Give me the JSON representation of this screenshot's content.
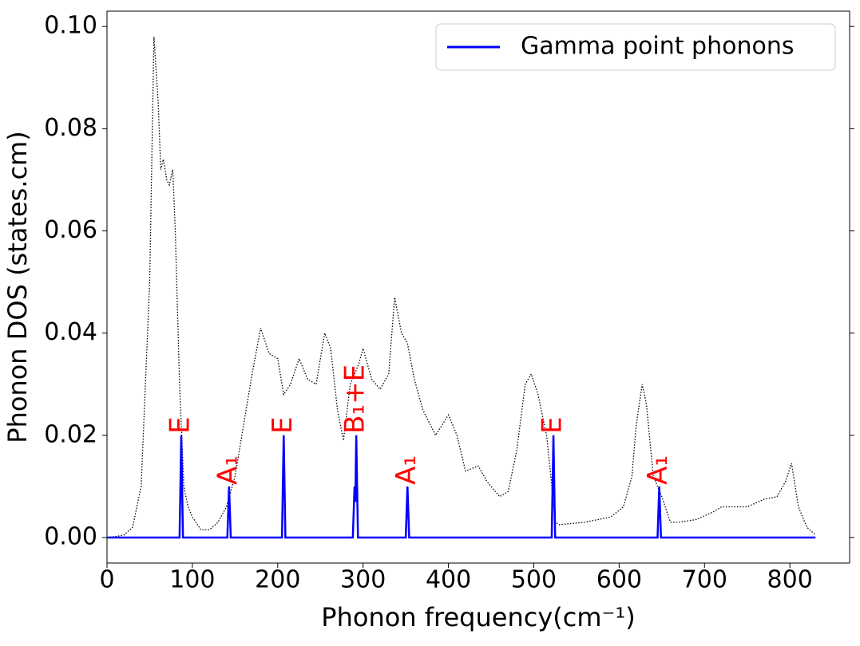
{
  "chart_data": {
    "type": "line",
    "xlabel": "Phonon frequency(cm⁻¹)",
    "ylabel": "Phonon DOS (states.cm)",
    "xlim": [
      0,
      870
    ],
    "ylim": [
      -0.005,
      0.103
    ],
    "xticks": [
      0,
      100,
      200,
      300,
      400,
      500,
      600,
      700,
      800
    ],
    "yticks": [
      {
        "value": 0,
        "label": "0.00"
      },
      {
        "value": 0.02,
        "label": "0.02"
      },
      {
        "value": 0.04,
        "label": "0.04"
      },
      {
        "value": 0.06,
        "label": "0.06"
      },
      {
        "value": 0.08,
        "label": "0.08"
      },
      {
        "value": 0.1,
        "label": "0.10"
      }
    ],
    "legend": "upper right",
    "series": [
      {
        "color": "#000000",
        "style": "dotted",
        "x": [
          0,
          10,
          20,
          30,
          40,
          50,
          55,
          60,
          63,
          66,
          70,
          73,
          77,
          80,
          85,
          90,
          95,
          100,
          110,
          120,
          130,
          140,
          150,
          160,
          170,
          180,
          190,
          200,
          207,
          215,
          225,
          235,
          245,
          255,
          262,
          270,
          277,
          285,
          295,
          300,
          310,
          320,
          330,
          337,
          345,
          352,
          360,
          370,
          385,
          400,
          410,
          420,
          435,
          445,
          460,
          470,
          480,
          490,
          497,
          505,
          515,
          520,
          525,
          530,
          560,
          590,
          605,
          615,
          620,
          627,
          632,
          640,
          650,
          660,
          670,
          690,
          710,
          720,
          750,
          770,
          785,
          795,
          802,
          810,
          820,
          830
        ],
        "values": [
          0,
          0.0002,
          0.0005,
          0.002,
          0.01,
          0.05,
          0.098,
          0.085,
          0.072,
          0.074,
          0.07,
          0.069,
          0.072,
          0.06,
          0.03,
          0.01,
          0.006,
          0.004,
          0.0015,
          0.0015,
          0.003,
          0.006,
          0.012,
          0.022,
          0.032,
          0.041,
          0.036,
          0.035,
          0.028,
          0.03,
          0.035,
          0.031,
          0.03,
          0.04,
          0.037,
          0.025,
          0.019,
          0.03,
          0.034,
          0.037,
          0.031,
          0.029,
          0.032,
          0.047,
          0.04,
          0.038,
          0.031,
          0.025,
          0.02,
          0.024,
          0.02,
          0.013,
          0.014,
          0.011,
          0.008,
          0.009,
          0.017,
          0.03,
          0.032,
          0.028,
          0.02,
          0.012,
          0.003,
          0.0025,
          0.003,
          0.004,
          0.006,
          0.012,
          0.022,
          0.03,
          0.026,
          0.012,
          0.008,
          0.003,
          0.003,
          0.0035,
          0.005,
          0.006,
          0.006,
          0.0075,
          0.008,
          0.011,
          0.0145,
          0.006,
          0.002,
          0.0005
        ]
      },
      {
        "name": "Gamma point phonons",
        "color": "#0000ff",
        "style": "solid",
        "x": [
          0,
          85,
          87,
          89,
          141,
          143,
          145,
          205,
          207,
          209,
          288,
          290,
          291,
          292,
          294,
          350,
          352,
          354,
          521,
          523,
          525,
          645,
          647,
          649,
          830
        ],
        "values": [
          0,
          0,
          0.02,
          0,
          0,
          0.01,
          0,
          0,
          0.02,
          0,
          0,
          0.01,
          0.007,
          0.02,
          0,
          0,
          0.01,
          0,
          0,
          0.02,
          0,
          0,
          0.01,
          0,
          0
        ]
      }
    ],
    "annotations": [
      {
        "text": "E",
        "x": 87,
        "y": 0.02,
        "color": "#ff0000"
      },
      {
        "text": "A₁",
        "x": 143,
        "y": 0.01,
        "color": "#ff0000"
      },
      {
        "text": "E",
        "x": 207,
        "y": 0.02,
        "color": "#ff0000"
      },
      {
        "text": "B₁+E",
        "x": 292,
        "y": 0.02,
        "color": "#ff0000"
      },
      {
        "text": "A₁",
        "x": 352,
        "y": 0.01,
        "color": "#ff0000"
      },
      {
        "text": "E",
        "x": 523,
        "y": 0.02,
        "color": "#ff0000"
      },
      {
        "text": "A₁",
        "x": 647,
        "y": 0.01,
        "color": "#ff0000"
      }
    ]
  }
}
